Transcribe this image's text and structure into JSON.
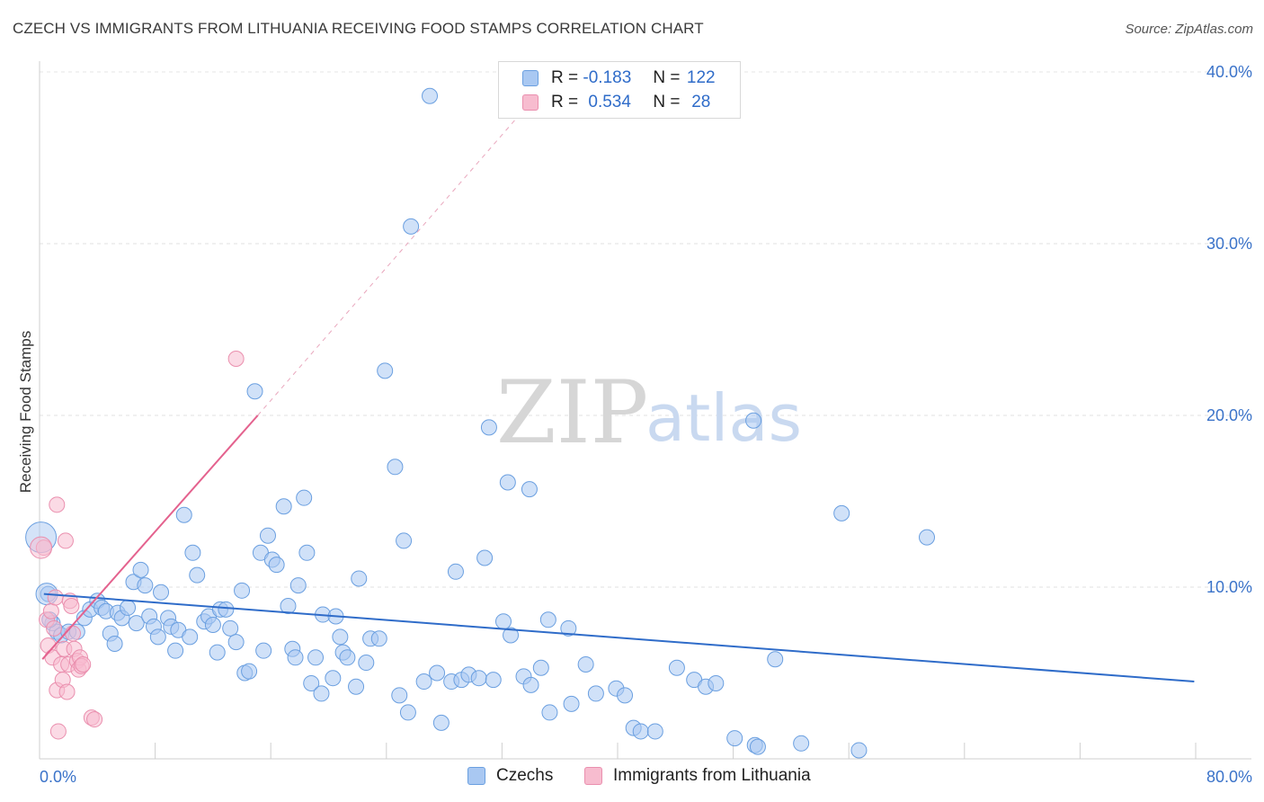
{
  "title": "CZECH VS IMMIGRANTS FROM LITHUANIA RECEIVING FOOD STAMPS CORRELATION CHART",
  "source": "Source: ZipAtlas.com",
  "watermark": {
    "zip": "ZIP",
    "atlas": "atlas"
  },
  "legend": {
    "r_label": "R =",
    "n_label": "N =",
    "rows": [
      {
        "r": "-0.183",
        "n": "122",
        "color": "#a9c8f2",
        "border": "#6a9fe0"
      },
      {
        "r": "0.534",
        "n": "28",
        "color": "#f7bccf",
        "border": "#ea8fae"
      }
    ]
  },
  "bottom_legend": [
    {
      "label": "Czechs",
      "color": "#a9c8f2",
      "border": "#6a9fe0"
    },
    {
      "label": "Immigrants from Lithuania",
      "color": "#f7bccf",
      "border": "#ea8fae"
    }
  ],
  "chart_data": {
    "type": "scatter",
    "title": "CZECH VS IMMIGRANTS FROM LITHUANIA RECEIVING FOOD STAMPS CORRELATION CHART",
    "xlabel": "",
    "ylabel": "Receiving Food Stamps",
    "xlim": [
      0,
      80
    ],
    "ylim": [
      0,
      40
    ],
    "x_tick_labels": {
      "min": "0.0%",
      "max": "80.0%"
    },
    "y_ticks": [
      {
        "value": 10,
        "label": "10.0%"
      },
      {
        "value": 20,
        "label": "20.0%"
      },
      {
        "value": 30,
        "label": "30.0%"
      },
      {
        "value": 40,
        "label": "40.0%"
      }
    ],
    "grid": true,
    "series": [
      {
        "name": "Czechs",
        "color": "#6a9fe0",
        "fill": "#a9c8f2",
        "trend": {
          "x1": 0.3,
          "y1": 9.6,
          "x2": 79.9,
          "y2": 4.5,
          "color": "#2f6cc9"
        },
        "points": [
          [
            0.6,
            9.6
          ],
          [
            0.9,
            7.9
          ],
          [
            1.2,
            7.4
          ],
          [
            1.5,
            7.2
          ],
          [
            2.0,
            7.4
          ],
          [
            2.6,
            7.4
          ],
          [
            3.1,
            8.2
          ],
          [
            3.5,
            8.7
          ],
          [
            4.0,
            9.2
          ],
          [
            4.3,
            8.8
          ],
          [
            4.6,
            8.6
          ],
          [
            4.9,
            7.3
          ],
          [
            5.2,
            6.7
          ],
          [
            5.4,
            8.5
          ],
          [
            5.7,
            8.2
          ],
          [
            6.1,
            8.8
          ],
          [
            6.5,
            10.3
          ],
          [
            6.7,
            7.9
          ],
          [
            7.0,
            11.0
          ],
          [
            7.3,
            10.1
          ],
          [
            7.6,
            8.3
          ],
          [
            7.9,
            7.7
          ],
          [
            8.2,
            7.1
          ],
          [
            8.4,
            9.7
          ],
          [
            8.9,
            8.2
          ],
          [
            9.1,
            7.7
          ],
          [
            9.4,
            6.3
          ],
          [
            9.6,
            7.5
          ],
          [
            10.0,
            14.2
          ],
          [
            10.4,
            7.1
          ],
          [
            10.6,
            12.0
          ],
          [
            10.9,
            10.7
          ],
          [
            11.4,
            8.0
          ],
          [
            11.7,
            8.3
          ],
          [
            12.0,
            7.8
          ],
          [
            12.3,
            6.2
          ],
          [
            12.5,
            8.7
          ],
          [
            12.9,
            8.7
          ],
          [
            13.2,
            7.6
          ],
          [
            13.6,
            6.8
          ],
          [
            14.0,
            9.8
          ],
          [
            14.2,
            5.0
          ],
          [
            14.5,
            5.1
          ],
          [
            14.9,
            21.4
          ],
          [
            15.3,
            12.0
          ],
          [
            15.5,
            6.3
          ],
          [
            15.8,
            13.0
          ],
          [
            16.1,
            11.6
          ],
          [
            16.4,
            11.3
          ],
          [
            16.9,
            14.7
          ],
          [
            17.2,
            8.9
          ],
          [
            17.5,
            6.4
          ],
          [
            17.7,
            5.9
          ],
          [
            17.9,
            10.1
          ],
          [
            18.3,
            15.2
          ],
          [
            18.5,
            12.0
          ],
          [
            18.8,
            4.4
          ],
          [
            19.1,
            5.9
          ],
          [
            19.5,
            3.8
          ],
          [
            19.6,
            8.4
          ],
          [
            20.3,
            4.7
          ],
          [
            20.5,
            8.3
          ],
          [
            20.8,
            7.1
          ],
          [
            21.0,
            6.2
          ],
          [
            21.3,
            5.9
          ],
          [
            21.9,
            4.2
          ],
          [
            22.1,
            10.5
          ],
          [
            22.6,
            5.6
          ],
          [
            22.9,
            7.0
          ],
          [
            23.5,
            7.0
          ],
          [
            23.9,
            22.6
          ],
          [
            24.6,
            17.0
          ],
          [
            24.9,
            3.7
          ],
          [
            25.2,
            12.7
          ],
          [
            25.5,
            2.7
          ],
          [
            25.7,
            31.0
          ],
          [
            26.6,
            4.5
          ],
          [
            27.0,
            38.6
          ],
          [
            27.5,
            5.0
          ],
          [
            27.8,
            2.1
          ],
          [
            28.5,
            4.5
          ],
          [
            28.8,
            10.9
          ],
          [
            29.2,
            4.6
          ],
          [
            29.7,
            4.9
          ],
          [
            30.4,
            4.7
          ],
          [
            30.8,
            11.7
          ],
          [
            31.1,
            19.3
          ],
          [
            31.4,
            4.6
          ],
          [
            32.1,
            8.0
          ],
          [
            32.4,
            16.1
          ],
          [
            32.6,
            7.2
          ],
          [
            33.5,
            4.8
          ],
          [
            33.9,
            15.7
          ],
          [
            34.0,
            4.3
          ],
          [
            34.7,
            5.3
          ],
          [
            35.2,
            8.1
          ],
          [
            35.3,
            2.7
          ],
          [
            36.6,
            7.6
          ],
          [
            36.8,
            3.2
          ],
          [
            37.8,
            5.5
          ],
          [
            38.5,
            3.8
          ],
          [
            39.9,
            4.1
          ],
          [
            40.5,
            3.7
          ],
          [
            41.1,
            1.8
          ],
          [
            41.6,
            1.6
          ],
          [
            42.6,
            1.6
          ],
          [
            44.1,
            5.3
          ],
          [
            45.3,
            4.6
          ],
          [
            46.1,
            4.2
          ],
          [
            46.8,
            4.4
          ],
          [
            48.1,
            1.2
          ],
          [
            49.4,
            19.7
          ],
          [
            49.5,
            0.8
          ],
          [
            49.7,
            0.7
          ],
          [
            50.9,
            5.8
          ],
          [
            52.7,
            0.9
          ],
          [
            55.5,
            14.3
          ],
          [
            56.7,
            0.5
          ],
          [
            61.4,
            12.9
          ],
          [
            0.7,
            8.1
          ]
        ]
      },
      {
        "name": "Immigrants from Lithuania",
        "color": "#ea8fae",
        "fill": "#f7bccf",
        "trend": {
          "x1": 0.2,
          "y1": 5.8,
          "x2": 15.1,
          "y2": 20.0,
          "color": "#e4628e"
        },
        "trend_extension": {
          "x1": 15.1,
          "y1": 20.0,
          "x2": 33.0,
          "y2": 37.3
        },
        "points": [
          [
            0.3,
            12.3
          ],
          [
            0.5,
            8.1
          ],
          [
            0.6,
            6.6
          ],
          [
            0.8,
            8.6
          ],
          [
            0.9,
            5.9
          ],
          [
            1.0,
            7.6
          ],
          [
            1.1,
            9.4
          ],
          [
            1.2,
            4.0
          ],
          [
            1.3,
            1.6
          ],
          [
            1.2,
            14.8
          ],
          [
            1.5,
            5.5
          ],
          [
            1.6,
            4.6
          ],
          [
            1.7,
            6.4
          ],
          [
            1.8,
            12.7
          ],
          [
            1.9,
            3.9
          ],
          [
            2.0,
            5.5
          ],
          [
            2.1,
            9.2
          ],
          [
            2.2,
            8.9
          ],
          [
            2.3,
            7.3
          ],
          [
            2.4,
            6.4
          ],
          [
            2.6,
            5.7
          ],
          [
            2.7,
            5.2
          ],
          [
            2.8,
            5.9
          ],
          [
            2.9,
            5.4
          ],
          [
            3.0,
            5.5
          ],
          [
            3.6,
            2.4
          ],
          [
            3.8,
            2.3
          ],
          [
            13.6,
            23.3
          ]
        ]
      }
    ]
  }
}
